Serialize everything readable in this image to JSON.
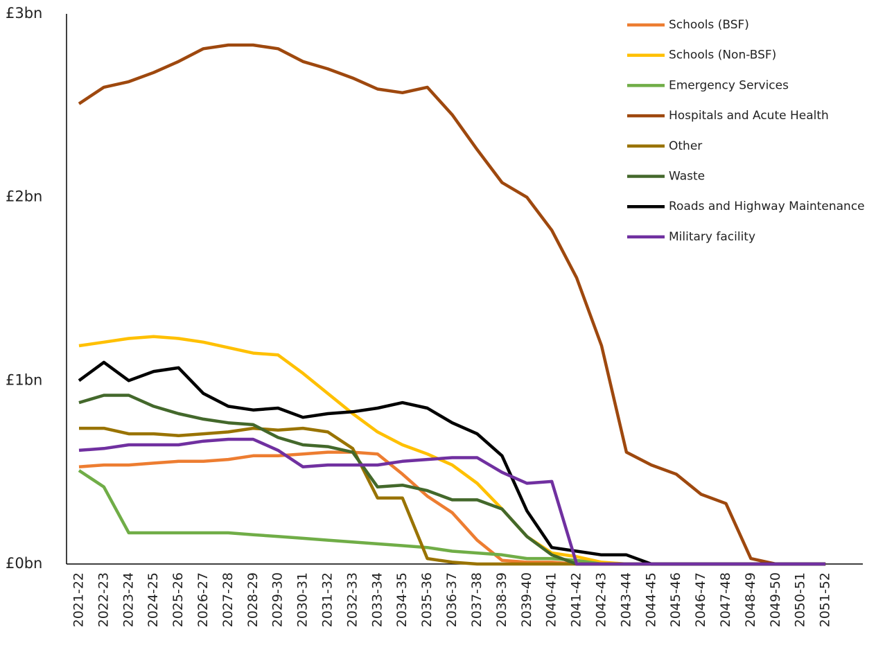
{
  "chart_data": {
    "type": "line",
    "categories": [
      "2021-22",
      "2022-23",
      "2023-24",
      "2024-25",
      "2025-26",
      "2026-27",
      "2027-28",
      "2028-29",
      "2029-30",
      "2030-31",
      "2031-32",
      "2032-33",
      "2033-34",
      "2034-35",
      "2035-36",
      "2036-37",
      "2037-38",
      "2038-39",
      "2039-40",
      "2040-41",
      "2041-42",
      "2042-43",
      "2043-44",
      "2044-45",
      "2045-46",
      "2046-47",
      "2047-48",
      "2048-49",
      "2049-50",
      "2050-51",
      "2051-52"
    ],
    "series": [
      {
        "name": "Schools (BSF)",
        "color": "#ed7d31",
        "values": [
          0.53,
          0.54,
          0.54,
          0.55,
          0.56,
          0.56,
          0.57,
          0.59,
          0.59,
          0.6,
          0.61,
          0.61,
          0.6,
          0.49,
          0.37,
          0.28,
          0.13,
          0.02,
          0.01,
          0.01,
          0,
          0,
          0,
          0,
          0,
          0,
          0,
          0,
          0,
          0,
          0
        ]
      },
      {
        "name": "Schools (Non-BSF)",
        "color": "#ffc000",
        "values": [
          1.19,
          1.21,
          1.23,
          1.24,
          1.23,
          1.21,
          1.18,
          1.15,
          1.14,
          1.04,
          0.93,
          0.82,
          0.72,
          0.65,
          0.6,
          0.54,
          0.44,
          0.3,
          0.15,
          0.06,
          0.04,
          0.01,
          0,
          0,
          0,
          0,
          0,
          0,
          0,
          0,
          0
        ]
      },
      {
        "name": "Emergency Services",
        "color": "#70ad47",
        "values": [
          0.51,
          0.42,
          0.17,
          0.17,
          0.17,
          0.17,
          0.17,
          0.16,
          0.15,
          0.14,
          0.13,
          0.12,
          0.11,
          0.1,
          0.09,
          0.07,
          0.06,
          0.05,
          0.03,
          0.03,
          0.02,
          0,
          0,
          0,
          0,
          0,
          0,
          0,
          0,
          0,
          0
        ]
      },
      {
        "name": "Hospitals and Acute Health",
        "color": "#9e480e",
        "values": [
          2.51,
          2.6,
          2.63,
          2.68,
          2.74,
          2.81,
          2.83,
          2.83,
          2.81,
          2.74,
          2.7,
          2.65,
          2.59,
          2.57,
          2.6,
          2.45,
          2.26,
          2.08,
          2.0,
          1.82,
          1.56,
          1.19,
          0.61,
          0.54,
          0.49,
          0.38,
          0.33,
          0.03,
          0,
          0,
          0
        ]
      },
      {
        "name": "Other",
        "color": "#997300",
        "values": [
          0.74,
          0.74,
          0.71,
          0.71,
          0.7,
          0.71,
          0.72,
          0.74,
          0.73,
          0.74,
          0.72,
          0.63,
          0.36,
          0.36,
          0.03,
          0.01,
          0,
          0,
          0,
          0,
          0,
          0,
          0,
          0,
          0,
          0,
          0,
          0,
          0,
          0,
          0
        ]
      },
      {
        "name": "Waste",
        "color": "#43682b",
        "values": [
          0.88,
          0.92,
          0.92,
          0.86,
          0.82,
          0.79,
          0.77,
          0.76,
          0.69,
          0.65,
          0.64,
          0.61,
          0.42,
          0.43,
          0.4,
          0.35,
          0.35,
          0.3,
          0.15,
          0.05,
          0,
          0,
          0,
          0,
          0,
          0,
          0,
          0,
          0,
          0,
          0
        ]
      },
      {
        "name": "Roads and Highway Maintenance",
        "color": "#000000",
        "values": [
          1.0,
          1.1,
          1.0,
          1.05,
          1.07,
          0.93,
          0.86,
          0.84,
          0.85,
          0.8,
          0.82,
          0.83,
          0.85,
          0.88,
          0.85,
          0.77,
          0.71,
          0.59,
          0.29,
          0.09,
          0.07,
          0.05,
          0.05,
          0,
          0,
          0,
          0,
          0,
          0,
          0,
          0
        ]
      },
      {
        "name": "Military facility",
        "color": "#7030a0",
        "values": [
          0.62,
          0.63,
          0.65,
          0.65,
          0.65,
          0.67,
          0.68,
          0.68,
          0.62,
          0.53,
          0.54,
          0.54,
          0.54,
          0.56,
          0.57,
          0.58,
          0.58,
          0.5,
          0.44,
          0.45,
          0,
          0,
          0,
          0,
          0,
          0,
          0,
          0,
          0,
          0,
          0
        ]
      }
    ],
    "ylim": [
      0,
      3
    ],
    "yticks": [
      {
        "value": 0,
        "label": "£0bn"
      },
      {
        "value": 1,
        "label": "£1bn"
      },
      {
        "value": 2,
        "label": "£2bn"
      },
      {
        "value": 3,
        "label": "£3bn"
      }
    ],
    "grid": false,
    "legend": "top-right"
  }
}
